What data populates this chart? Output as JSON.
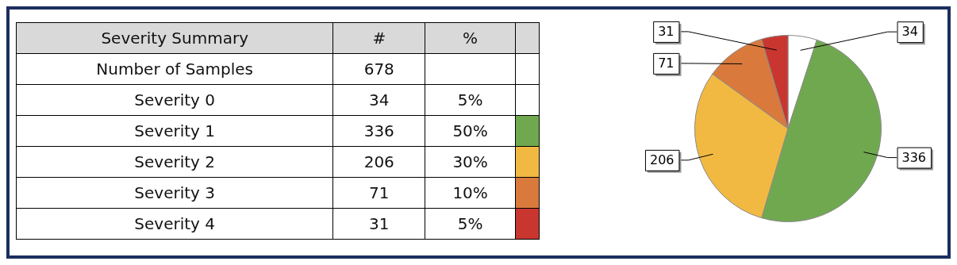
{
  "chart_data": [
    {
      "type": "other",
      "title": "Severity Summary",
      "annotations": [
        "#",
        "%",
        "Number of Samples",
        "678",
        "Severity 0",
        "34",
        "5%",
        "Severity 1",
        "336",
        "50%",
        "Severity 2",
        "206",
        "30%",
        "Severity 3",
        "71",
        "10%",
        "Severity 4",
        "31",
        "5%"
      ]
    },
    {
      "type": "pie",
      "categories": [
        null,
        null,
        null,
        null,
        null
      ],
      "values": [
        34,
        336,
        206,
        71,
        31
      ],
      "colors": [
        "#ffffff",
        "#70a850",
        "#f2b942",
        "#d97a3c",
        "#c9362f"
      ],
      "data_labels": true,
      "legend": false
    }
  ]
}
